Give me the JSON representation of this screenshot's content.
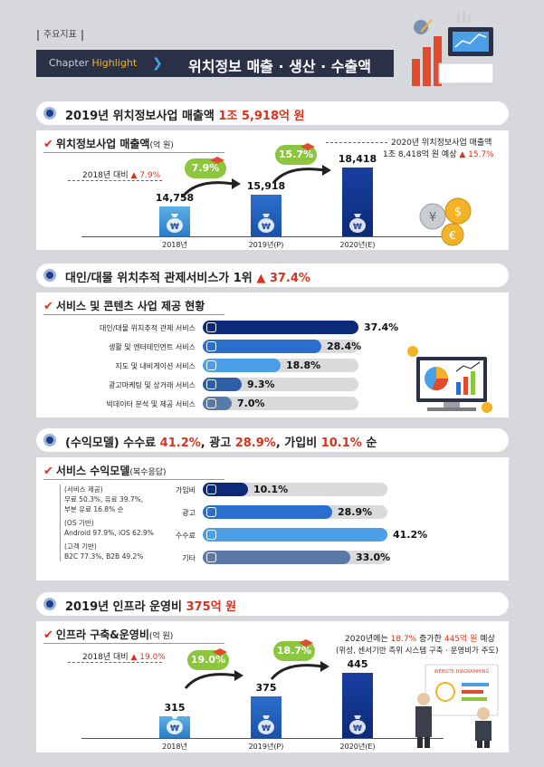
{
  "header": {
    "tag": "주요지표",
    "chapter_prefix": "Chapter",
    "chapter_word": "Highlight",
    "title": "위치정보 매출 · 생산 · 수출액"
  },
  "section1": {
    "heading": "2019년 위치정보사업 매출액",
    "heading_highlight": "1조 5,918억 원",
    "sub_title": "위치정보사업 매출액",
    "sub_unit": "(억 원)",
    "growth_note_label": "2018년 대비",
    "growth_note_value": "▲ 7.9%",
    "forecast_line1": "2020년 위치정보사업 매출액",
    "forecast_line2": "1조 8,418억 원 예상",
    "forecast_value": "▲ 15.7%",
    "pills": [
      "7.9%",
      "15.7%"
    ]
  },
  "chart1": {
    "type": "bar",
    "categories": [
      "2018년",
      "2019년(P)",
      "2020년(E)"
    ],
    "values": [
      14758,
      15918,
      18418
    ],
    "value_labels": [
      "14,758",
      "15,918",
      "18,418"
    ]
  },
  "section2": {
    "heading": "대인/대물 위치추적 관제서비스가 1위",
    "heading_highlight": "▲ 37.4%",
    "sub_title": "서비스 및 콘텐츠 사업 제공 현황"
  },
  "chart2": {
    "type": "bar",
    "categories": [
      "대인/대물 위치추적 관제 서비스",
      "생활 및 엔터테인먼트 서비스",
      "지도 및 내비게이션 서비스",
      "광고마케팅 및 상거래 서비스",
      "빅데이터 분석 및 제공 서비스"
    ],
    "values": [
      37.4,
      28.4,
      18.8,
      9.3,
      7.0
    ],
    "value_labels": [
      "37.4%",
      "28.4%",
      "18.8%",
      "9.3%",
      "7.0%"
    ],
    "colors": [
      "#0d2a7a",
      "#2a6fd0",
      "#4a9fe6",
      "#2d5fa8",
      "#5a78a8"
    ]
  },
  "section3": {
    "heading_pre": "(수익모델) 수수료",
    "v1": "41.2%",
    "mid1": ", 광고",
    "v2": "28.9%",
    "mid2": ", 가입비",
    "v3": "10.1%",
    "post": " 순",
    "sub_title": "서비스 수익모델",
    "sub_unit": "(복수응답)",
    "notes": [
      "(서비스 제공)",
      "무료 50.3%, 유료 39.7%,",
      "부분 유료 16.8% 순",
      "(OS 기반)",
      "Android 97.9%, iOS 62.9%",
      "(고객 기반)",
      "B2C 77.3%, B2B 49.2%"
    ]
  },
  "chart3": {
    "type": "bar",
    "categories": [
      "가입비",
      "광고",
      "수수료",
      "기타"
    ],
    "values": [
      10.1,
      28.9,
      41.2,
      33.0
    ],
    "value_labels": [
      "10.1%",
      "28.9%",
      "41.2%",
      "33.0%"
    ],
    "colors": [
      "#0d2a7a",
      "#2a6fd0",
      "#4a9fe6",
      "#5a78a8"
    ]
  },
  "section4": {
    "heading": "2019년 인프라 운영비",
    "heading_highlight": "375억 원",
    "sub_title": "인프라 구축&운영비",
    "sub_unit": "(억 원)",
    "growth_note_label": "2018년 대비",
    "growth_note_value": "▲ 19.0%",
    "forecast_pre": "2020년에는",
    "forecast_pct": "18.7%",
    "forecast_mid": "증가한",
    "forecast_amt": "445억 원",
    "forecast_post": "예상",
    "forecast_line2": "(위성, 센서기반 측위 시스템 구축 · 운영비가 주도)",
    "pills": [
      "19.0%",
      "18.7%"
    ],
    "board_text": "WEBSITE DIAGRAMMING"
  },
  "chart4": {
    "type": "bar",
    "categories": [
      "2018년",
      "2019년(P)",
      "2020년(E)"
    ],
    "values": [
      315,
      375,
      445
    ],
    "value_labels": [
      "315",
      "375",
      "445"
    ]
  },
  "bag_symbol": "₩"
}
